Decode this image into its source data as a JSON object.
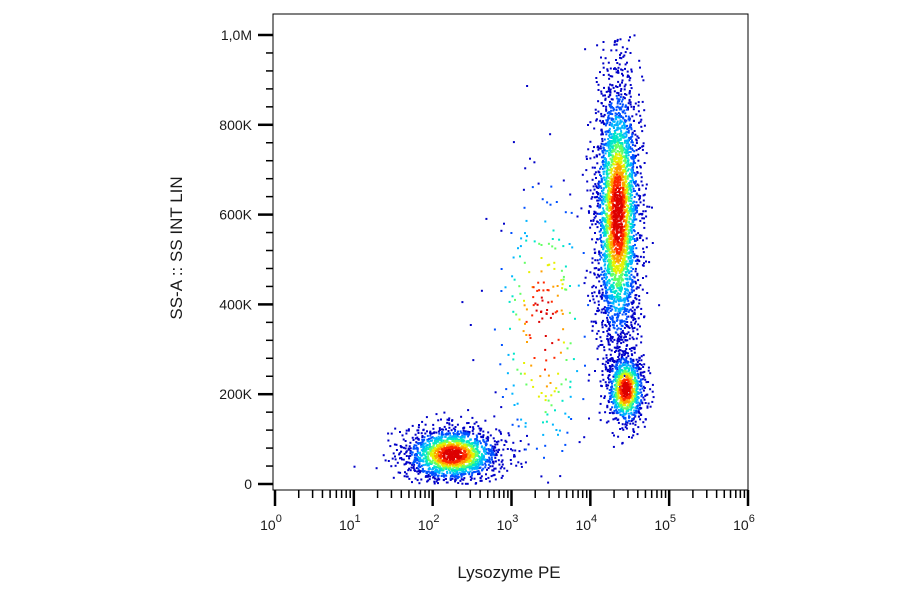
{
  "chart_data": {
    "type": "scatter",
    "title": "",
    "xlabel": "Lysozyme PE",
    "ylabel": "SS-A :: SS INT LIN",
    "x_scale": "log",
    "xlim": [
      1,
      1000000
    ],
    "ylim": [
      0,
      1000000
    ],
    "x_tick_labels": [
      {
        "base": "10",
        "exp": "0",
        "value": 1
      },
      {
        "base": "10",
        "exp": "1",
        "value": 10
      },
      {
        "base": "10",
        "exp": "2",
        "value": 100
      },
      {
        "base": "10",
        "exp": "3",
        "value": 1000
      },
      {
        "base": "10",
        "exp": "4",
        "value": 10000
      },
      {
        "base": "10",
        "exp": "5",
        "value": 100000
      },
      {
        "base": "10",
        "exp": "6",
        "value": 1000000
      }
    ],
    "y_ticks": [
      {
        "label": "0",
        "value": 0
      },
      {
        "label": "200K",
        "value": 200000
      },
      {
        "label": "400K",
        "value": 400000
      },
      {
        "label": "600K",
        "value": 600000
      },
      {
        "label": "800K",
        "value": 800000
      },
      {
        "label": "1,0M",
        "value": 1000000
      }
    ],
    "grid": false,
    "legend": "none",
    "density_colormap": [
      "#0000c8",
      "#0050ff",
      "#00b4ff",
      "#00e6c8",
      "#64ff64",
      "#e6f000",
      "#ffa000",
      "#ff2800",
      "#dc0000"
    ],
    "populations": [
      {
        "x_log10_center": 2.25,
        "y_center": 65000,
        "x_log10_sd": 0.3,
        "y_sd": 30000,
        "relative_count": 1800
      },
      {
        "x_log10_center": 4.35,
        "y_center": 600000,
        "x_log10_sd": 0.14,
        "y_sd": 150000,
        "relative_count": 3200
      },
      {
        "x_log10_center": 4.45,
        "y_center": 210000,
        "x_log10_sd": 0.12,
        "y_sd": 40000,
        "relative_count": 900
      },
      {
        "x_log10_center": 3.4,
        "y_center": 350000,
        "x_log10_sd": 0.35,
        "y_sd": 180000,
        "relative_count": 250
      }
    ]
  }
}
